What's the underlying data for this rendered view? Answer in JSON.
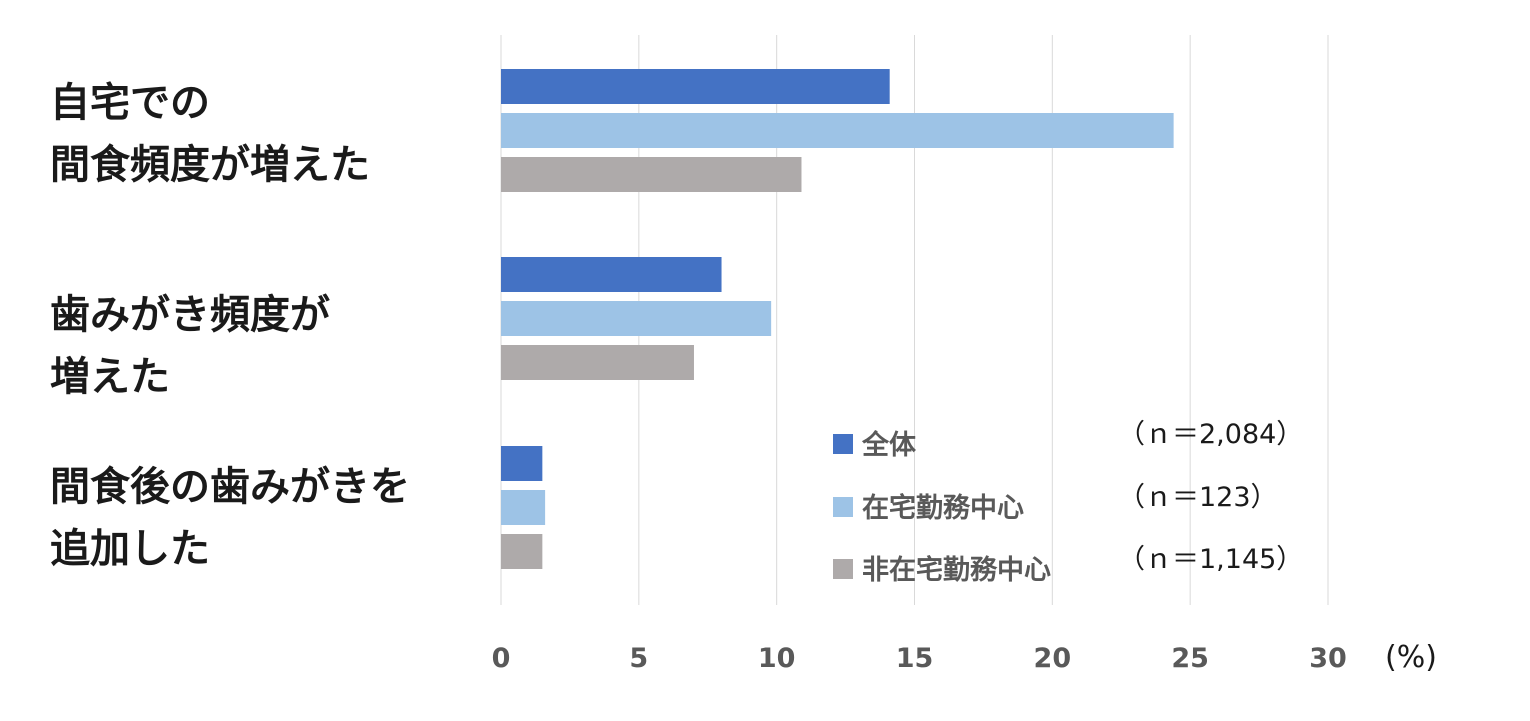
{
  "chart_data": {
    "type": "bar",
    "orientation": "horizontal",
    "categories": [
      [
        "自宅での",
        "間食頻度が増えた"
      ],
      [
        "歯みがき頻度が",
        "増えた"
      ],
      [
        "間食後の歯みがきを",
        "追加した"
      ]
    ],
    "series": [
      {
        "name": "全体",
        "n_label": "（ｎ＝2,084）",
        "color": "#4472C4",
        "values": [
          14.1,
          8.0,
          1.5
        ]
      },
      {
        "name": "在宅勤務中心",
        "n_label": "（ｎ＝123）",
        "color": "#9DC3E6",
        "values": [
          24.4,
          9.8,
          1.6
        ]
      },
      {
        "name": "非在宅勤務中心",
        "n_label": "（ｎ＝1,145）",
        "color": "#AEAAAA",
        "values": [
          10.9,
          7.0,
          1.5
        ]
      }
    ],
    "xlim": [
      0,
      30
    ],
    "xticks": [
      0,
      5,
      10,
      15,
      20,
      25,
      30
    ],
    "unit_label": "(%)",
    "grid": true,
    "legend_position": "bottom-right"
  }
}
